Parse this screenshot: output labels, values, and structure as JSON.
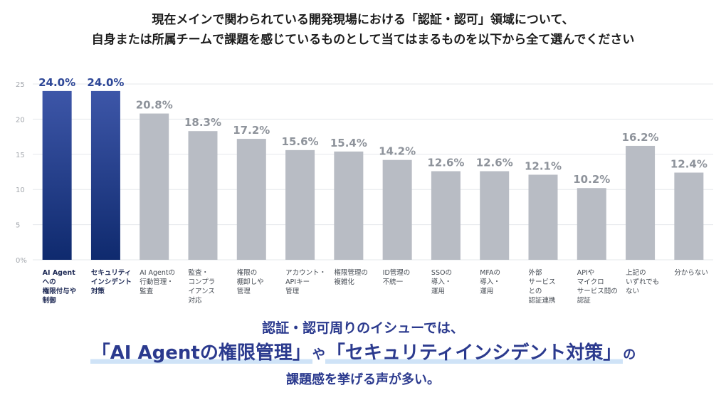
{
  "title": {
    "line1": "現在メインで関わられている開発現場における「認証・認可」領域について、",
    "line2": "自身または所属チームで課題を感じているものとして当てはまるものを以下から全て選んでください"
  },
  "chart_data": {
    "type": "bar",
    "categories": [
      [
        "AI Agent",
        "への",
        "権限付与や",
        "制御"
      ],
      [
        "セキュリティ",
        "インシデント",
        "対策"
      ],
      [
        "AI Agentの",
        "行動管理・",
        "監査"
      ],
      [
        "監査・",
        "コンプラ",
        "イアンス",
        "対応"
      ],
      [
        "権限の",
        "棚卸しや",
        "管理"
      ],
      [
        "アカウント・",
        "APIキー",
        "管理"
      ],
      [
        "権限管理の",
        "複雑化"
      ],
      [
        "ID管理の",
        "不統一"
      ],
      [
        "SSOの",
        "導入・",
        "運用"
      ],
      [
        "MFAの",
        "導入・",
        "運用"
      ],
      [
        "外部",
        "サービス",
        "との",
        "認証連携"
      ],
      [
        "APIや",
        "マイクロ",
        "サービス間の",
        "認証"
      ],
      [
        "上記の",
        "いずれでも",
        "ない"
      ],
      [
        "分からない"
      ]
    ],
    "values": [
      24.0,
      24.0,
      20.8,
      18.3,
      17.2,
      15.6,
      15.4,
      14.2,
      12.6,
      12.6,
      12.1,
      10.2,
      16.2,
      12.4
    ],
    "value_labels": [
      "24.0%",
      "24.0%",
      "20.8%",
      "18.3%",
      "17.2%",
      "15.6%",
      "15.4%",
      "14.2%",
      "12.6%",
      "12.6%",
      "12.1%",
      "10.2%",
      "16.2%",
      "12.4%"
    ],
    "highlighted": [
      0,
      1
    ],
    "yticks": [
      "0%",
      "5",
      "10",
      "15",
      "20",
      "25"
    ],
    "ylim": [
      0,
      25
    ],
    "grid": true,
    "colors": {
      "highlight_top": "#3d56a8",
      "highlight_bottom": "#0f2a6e",
      "normal": "#b8bcc4",
      "highlight_label": "#2e4797",
      "normal_label": "#8e939b",
      "grid": "#e6e8eb"
    }
  },
  "conclusion": {
    "line1": "認証・認可周りのイシューでは、",
    "hl1": "「AI Agentの権限管理」",
    "connector": "や",
    "hl2": "「セキュリティインシデント対策」",
    "particle": "の",
    "line3": "課題感を挙げる声が多い。"
  }
}
